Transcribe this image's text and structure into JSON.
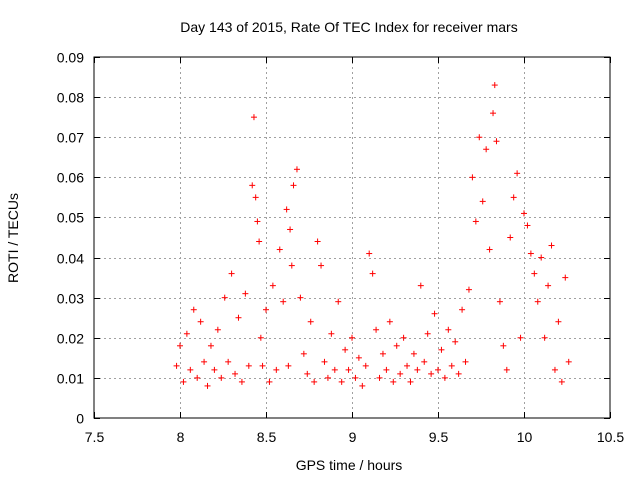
{
  "chart_data": {
    "type": "scatter",
    "title": "Day 143 of 2015, Rate Of TEC Index for receiver mars",
    "xlabel": "GPS time / hours",
    "ylabel": "ROTI / TECUs",
    "xlim": [
      7.5,
      10.5
    ],
    "ylim": [
      0,
      0.09
    ],
    "x_ticks": [
      7.5,
      8,
      8.5,
      9,
      9.5,
      10,
      10.5
    ],
    "x_tick_labels": [
      "7.5",
      "8",
      "8.5",
      "9",
      "9.5",
      "10",
      "10.5"
    ],
    "y_ticks": [
      0,
      0.01,
      0.02,
      0.03,
      0.04,
      0.05,
      0.06,
      0.07,
      0.08,
      0.09
    ],
    "y_tick_labels": [
      "0",
      "0.01",
      "0.02",
      "0.03",
      "0.04",
      "0.05",
      "0.06",
      "0.07",
      "0.08",
      "0.09"
    ],
    "grid": true,
    "marker": "+",
    "color": "#ff0000",
    "series": [
      {
        "name": "ROTI",
        "x": [
          7.98,
          8.0,
          8.02,
          8.04,
          8.06,
          8.08,
          8.1,
          8.12,
          8.14,
          8.16,
          8.18,
          8.2,
          8.22,
          8.24,
          8.26,
          8.28,
          8.3,
          8.32,
          8.34,
          8.36,
          8.38,
          8.4,
          8.42,
          8.43,
          8.44,
          8.45,
          8.46,
          8.47,
          8.48,
          8.5,
          8.52,
          8.54,
          8.56,
          8.58,
          8.6,
          8.62,
          8.63,
          8.64,
          8.65,
          8.66,
          8.68,
          8.7,
          8.72,
          8.74,
          8.76,
          8.78,
          8.8,
          8.82,
          8.84,
          8.86,
          8.88,
          8.9,
          8.92,
          8.94,
          8.96,
          8.98,
          9.0,
          9.02,
          9.04,
          9.06,
          9.08,
          9.1,
          9.12,
          9.14,
          9.16,
          9.18,
          9.2,
          9.22,
          9.24,
          9.26,
          9.28,
          9.3,
          9.32,
          9.34,
          9.36,
          9.38,
          9.4,
          9.42,
          9.44,
          9.46,
          9.48,
          9.5,
          9.52,
          9.54,
          9.56,
          9.58,
          9.6,
          9.62,
          9.64,
          9.66,
          9.68,
          9.7,
          9.72,
          9.74,
          9.76,
          9.78,
          9.8,
          9.82,
          9.83,
          9.84,
          9.86,
          9.88,
          9.9,
          9.92,
          9.94,
          9.96,
          9.98,
          10.0,
          10.02,
          10.04,
          10.06,
          10.08,
          10.1,
          10.12,
          10.14,
          10.16,
          10.18,
          10.2,
          10.22,
          10.24,
          10.26
        ],
        "y": [
          0.013,
          0.018,
          0.009,
          0.021,
          0.012,
          0.027,
          0.01,
          0.024,
          0.014,
          0.008,
          0.018,
          0.012,
          0.022,
          0.01,
          0.03,
          0.014,
          0.036,
          0.011,
          0.025,
          0.009,
          0.031,
          0.013,
          0.058,
          0.075,
          0.055,
          0.049,
          0.044,
          0.02,
          0.013,
          0.027,
          0.009,
          0.033,
          0.012,
          0.042,
          0.029,
          0.052,
          0.013,
          0.047,
          0.038,
          0.058,
          0.062,
          0.03,
          0.016,
          0.011,
          0.024,
          0.009,
          0.044,
          0.038,
          0.014,
          0.01,
          0.021,
          0.012,
          0.029,
          0.009,
          0.017,
          0.012,
          0.02,
          0.01,
          0.015,
          0.008,
          0.013,
          0.041,
          0.036,
          0.022,
          0.01,
          0.016,
          0.012,
          0.024,
          0.009,
          0.018,
          0.011,
          0.02,
          0.013,
          0.009,
          0.016,
          0.012,
          0.033,
          0.014,
          0.021,
          0.011,
          0.026,
          0.012,
          0.017,
          0.01,
          0.022,
          0.013,
          0.019,
          0.011,
          0.027,
          0.014,
          0.032,
          0.06,
          0.049,
          0.07,
          0.054,
          0.067,
          0.042,
          0.076,
          0.083,
          0.069,
          0.029,
          0.018,
          0.012,
          0.045,
          0.055,
          0.061,
          0.02,
          0.051,
          0.048,
          0.041,
          0.036,
          0.029,
          0.04,
          0.02,
          0.033,
          0.043,
          0.012,
          0.024,
          0.009,
          0.035,
          0.014
        ]
      }
    ]
  }
}
